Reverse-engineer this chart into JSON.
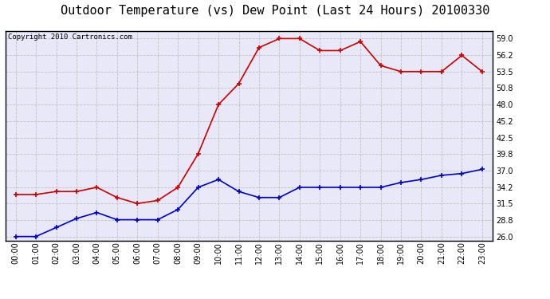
{
  "title": "Outdoor Temperature (vs) Dew Point (Last 24 Hours) 20100330",
  "copyright": "Copyright 2010 Cartronics.com",
  "hours": [
    "00:00",
    "01:00",
    "02:00",
    "03:00",
    "04:00",
    "05:00",
    "06:00",
    "07:00",
    "08:00",
    "09:00",
    "10:00",
    "11:00",
    "12:00",
    "13:00",
    "14:00",
    "15:00",
    "16:00",
    "17:00",
    "18:00",
    "19:00",
    "20:00",
    "21:00",
    "22:00",
    "23:00"
  ],
  "temp": [
    33.0,
    33.0,
    33.5,
    33.5,
    34.2,
    32.5,
    31.5,
    32.0,
    34.2,
    39.8,
    48.0,
    51.5,
    57.5,
    59.0,
    59.0,
    57.0,
    57.0,
    58.5,
    54.5,
    53.5,
    53.5,
    53.5,
    56.2,
    53.5
  ],
  "dew": [
    26.0,
    26.0,
    27.5,
    29.0,
    30.0,
    28.8,
    28.8,
    28.8,
    30.5,
    34.2,
    35.5,
    33.5,
    32.5,
    32.5,
    34.2,
    34.2,
    34.2,
    34.2,
    34.2,
    35.0,
    35.5,
    36.2,
    36.5,
    37.2
  ],
  "temp_color": "#cc0000",
  "dew_color": "#0000cc",
  "bg_color": "#ffffff",
  "plot_bg_color": "#e8e8f8",
  "grid_color": "#bbbbbb",
  "yticks": [
    26.0,
    28.8,
    31.5,
    34.2,
    37.0,
    39.8,
    42.5,
    45.2,
    48.0,
    50.8,
    53.5,
    56.2,
    59.0
  ],
  "ylim": [
    25.3,
    60.2
  ],
  "title_fontsize": 11,
  "copyright_fontsize": 6.5,
  "tick_fontsize": 7,
  "marker": "+",
  "marker_size": 4,
  "linewidth": 1.2
}
